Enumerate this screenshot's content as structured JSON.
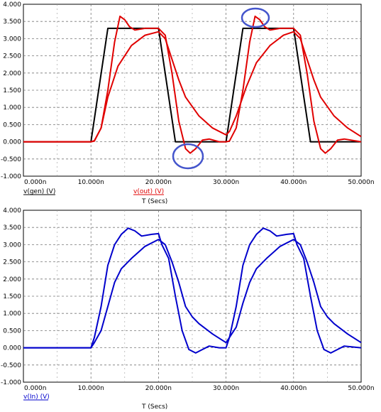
{
  "chart_data": [
    {
      "type": "line",
      "x_unit": "ns",
      "xlim": [
        0,
        50
      ],
      "ylim": [
        -1.0,
        4.0
      ],
      "grid": true,
      "xlabel": "T (Secs)",
      "ylabel": "",
      "x_tick_labels": [
        "0.000n",
        "10.000n",
        "20.000n",
        "30.000n",
        "40.000n",
        "50.000n"
      ],
      "y_tick_values": [
        4.0,
        3.5,
        3.0,
        2.5,
        2.0,
        1.5,
        1.0,
        0.5,
        0.0,
        -0.5,
        -1.0
      ],
      "y_tick_labels": [
        "4.000",
        "3.500",
        "3.000",
        "2.500",
        "2.000",
        "1.500",
        "1.000",
        "0.500",
        "0.000",
        "-0.500",
        "-1.000"
      ],
      "legend": [
        {
          "text": "v(gen) (V)",
          "color": "#000000"
        },
        {
          "text": "v(out) (V)",
          "color": "#e00000"
        }
      ],
      "series": [
        {
          "name": "v(gen) (V)",
          "color": "#000000",
          "points": [
            [
              0,
              0
            ],
            [
              10,
              0
            ],
            [
              12.5,
              3.3
            ],
            [
              20,
              3.3
            ],
            [
              22.5,
              0
            ],
            [
              30,
              0
            ],
            [
              32.5,
              3.3
            ],
            [
              40,
              3.3
            ],
            [
              42.5,
              0
            ],
            [
              50,
              0
            ]
          ]
        },
        {
          "name": "v(out) (V)",
          "color": "#e00000",
          "points": [
            [
              0,
              0
            ],
            [
              10,
              0
            ],
            [
              10.5,
              0.02
            ],
            [
              11.5,
              0.4
            ],
            [
              12.5,
              1.5
            ],
            [
              13.5,
              2.9
            ],
            [
              14.3,
              3.65
            ],
            [
              15,
              3.55
            ],
            [
              15.7,
              3.35
            ],
            [
              16.5,
              3.25
            ],
            [
              18,
              3.3
            ],
            [
              20,
              3.3
            ],
            [
              21,
              3.1
            ],
            [
              22,
              2.0
            ],
            [
              23,
              0.6
            ],
            [
              24,
              -0.2
            ],
            [
              24.7,
              -0.33
            ],
            [
              25.5,
              -0.2
            ],
            [
              26.5,
              0.05
            ],
            [
              27.5,
              0.08
            ],
            [
              29,
              0
            ],
            [
              30,
              0
            ],
            [
              30.5,
              0.02
            ],
            [
              31.5,
              0.4
            ],
            [
              32.5,
              1.5
            ],
            [
              33.5,
              2.9
            ],
            [
              34.3,
              3.65
            ],
            [
              35,
              3.55
            ],
            [
              35.7,
              3.35
            ],
            [
              36.5,
              3.25
            ],
            [
              38,
              3.3
            ],
            [
              40,
              3.3
            ],
            [
              41,
              3.1
            ],
            [
              42,
              2.0
            ],
            [
              43,
              0.6
            ],
            [
              44,
              -0.2
            ],
            [
              44.7,
              -0.33
            ],
            [
              45.5,
              -0.2
            ],
            [
              46.5,
              0.05
            ],
            [
              47.5,
              0.08
            ],
            [
              50,
              0
            ]
          ]
        },
        {
          "name": "v(out) (V)",
          "color": "#e00000",
          "points": [
            [
              0,
              0
            ],
            [
              10,
              0
            ],
            [
              10.5,
              0.03
            ],
            [
              11.5,
              0.4
            ],
            [
              12.5,
              1.3
            ],
            [
              14,
              2.2
            ],
            [
              16,
              2.8
            ],
            [
              18,
              3.1
            ],
            [
              20,
              3.2
            ],
            [
              21,
              3.0
            ],
            [
              22,
              2.4
            ],
            [
              23,
              1.8
            ],
            [
              24,
              1.3
            ],
            [
              26,
              0.75
            ],
            [
              28,
              0.4
            ],
            [
              30,
              0.2
            ],
            [
              30.5,
              0.3
            ],
            [
              31.5,
              0.75
            ],
            [
              33,
              1.6
            ],
            [
              34.5,
              2.3
            ],
            [
              36.5,
              2.8
            ],
            [
              38.5,
              3.1
            ],
            [
              40,
              3.2
            ],
            [
              41,
              3.0
            ],
            [
              42,
              2.4
            ],
            [
              43,
              1.8
            ],
            [
              44,
              1.3
            ],
            [
              46,
              0.75
            ],
            [
              48,
              0.4
            ],
            [
              50,
              0.15
            ]
          ]
        }
      ],
      "annotations": [
        "circle around overshoot peak near 35n",
        "circle around undershoot near 25n"
      ]
    },
    {
      "type": "line",
      "x_unit": "ns",
      "xlim": [
        0,
        50
      ],
      "ylim": [
        -1.0,
        4.0
      ],
      "grid": true,
      "xlabel": "T (Secs)",
      "ylabel": "",
      "x_tick_labels": [
        "0.000n",
        "10.000n",
        "20.000n",
        "30.000n",
        "40.000n",
        "50.000n"
      ],
      "y_tick_values": [
        4.0,
        3.5,
        3.0,
        2.5,
        2.0,
        1.5,
        1.0,
        0.5,
        0.0,
        -0.5,
        -1.0
      ],
      "y_tick_labels": [
        "4.000",
        "3.500",
        "3.000",
        "2.500",
        "2.000",
        "1.500",
        "1.000",
        "0.500",
        "0.000",
        "-0.500",
        "-1.000"
      ],
      "legend": [
        {
          "text": "v(In) (V)",
          "color": "#0000cc"
        }
      ],
      "series": [
        {
          "name": "v(In) (V)",
          "color": "#0000cc",
          "points": [
            [
              0,
              0
            ],
            [
              10,
              0
            ],
            [
              10.5,
              0.3
            ],
            [
              11.5,
              1.2
            ],
            [
              12.5,
              2.4
            ],
            [
              13.5,
              3.0
            ],
            [
              14.5,
              3.3
            ],
            [
              15.5,
              3.48
            ],
            [
              16.5,
              3.4
            ],
            [
              17.5,
              3.25
            ],
            [
              19,
              3.3
            ],
            [
              20,
              3.32
            ],
            [
              20.5,
              3.0
            ],
            [
              21.5,
              2.6
            ],
            [
              22.5,
              1.5
            ],
            [
              23.5,
              0.5
            ],
            [
              24.5,
              -0.05
            ],
            [
              25.5,
              -0.15
            ],
            [
              26.5,
              -0.05
            ],
            [
              27.5,
              0.05
            ],
            [
              29,
              0
            ],
            [
              30,
              0
            ],
            [
              30.5,
              0.3
            ],
            [
              31.5,
              1.2
            ],
            [
              32.5,
              2.4
            ],
            [
              33.5,
              3.0
            ],
            [
              34.5,
              3.3
            ],
            [
              35.5,
              3.48
            ],
            [
              36.5,
              3.4
            ],
            [
              37.5,
              3.25
            ],
            [
              39,
              3.3
            ],
            [
              40,
              3.32
            ],
            [
              40.5,
              3.0
            ],
            [
              41.5,
              2.6
            ],
            [
              42.5,
              1.5
            ],
            [
              43.5,
              0.5
            ],
            [
              44.5,
              -0.05
            ],
            [
              45.5,
              -0.15
            ],
            [
              46.5,
              -0.05
            ],
            [
              47.5,
              0.05
            ],
            [
              50,
              0
            ]
          ]
        },
        {
          "name": "v(In) (V)",
          "color": "#0000cc",
          "points": [
            [
              0,
              0
            ],
            [
              10,
              0
            ],
            [
              10.5,
              0.15
            ],
            [
              11.5,
              0.5
            ],
            [
              12.5,
              1.2
            ],
            [
              13.5,
              1.9
            ],
            [
              14.5,
              2.3
            ],
            [
              16,
              2.6
            ],
            [
              18,
              2.95
            ],
            [
              20,
              3.15
            ],
            [
              21,
              3.0
            ],
            [
              22,
              2.5
            ],
            [
              23,
              1.9
            ],
            [
              24,
              1.2
            ],
            [
              25,
              0.9
            ],
            [
              26,
              0.7
            ],
            [
              28,
              0.4
            ],
            [
              30,
              0.15
            ],
            [
              30.5,
              0.3
            ],
            [
              31.5,
              0.6
            ],
            [
              32.5,
              1.3
            ],
            [
              33.5,
              1.9
            ],
            [
              34.5,
              2.3
            ],
            [
              36,
              2.6
            ],
            [
              38,
              2.95
            ],
            [
              40,
              3.15
            ],
            [
              41,
              3.0
            ],
            [
              42,
              2.5
            ],
            [
              43,
              1.9
            ],
            [
              44,
              1.2
            ],
            [
              45,
              0.9
            ],
            [
              46,
              0.7
            ],
            [
              48,
              0.4
            ],
            [
              50,
              0.15
            ]
          ]
        }
      ]
    }
  ]
}
